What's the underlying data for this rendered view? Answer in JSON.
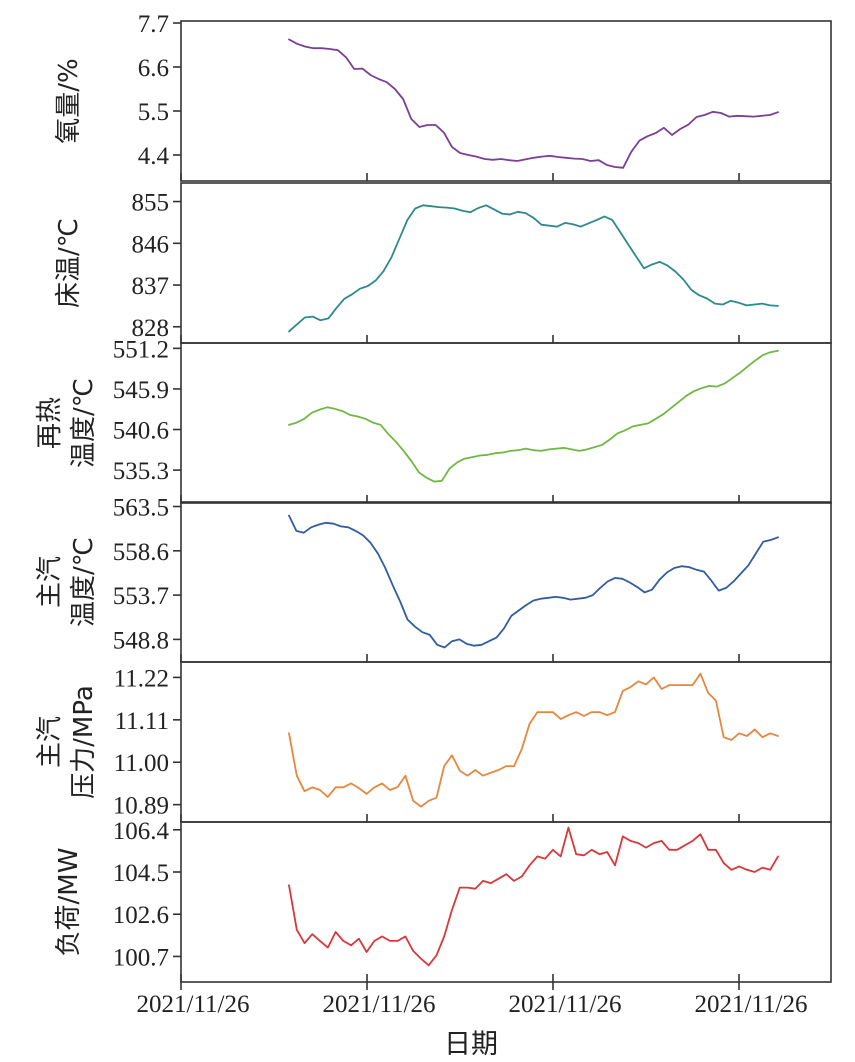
{
  "chart_data": {
    "type": "line",
    "xlabel": "日期",
    "x_tick_labels": [
      "2021/11/26",
      "2021/11/26",
      "2021/11/26",
      "2021/11/26"
    ],
    "grid": false,
    "panels": [
      {
        "ylabel": [
          "氧量/%"
        ],
        "color": "#7b3f98",
        "ylim": [
          3.75,
          7.75
        ],
        "yticks": [
          7.7,
          6.6,
          5.5,
          4.4
        ],
        "ytick_labels": [
          "7.7",
          "6.6",
          "5.5",
          "4.4"
        ],
        "values": [
          7.29,
          7.18,
          7.11,
          7.07,
          7.07,
          7.05,
          7.02,
          6.84,
          6.55,
          6.56,
          6.4,
          6.3,
          6.22,
          6.05,
          5.8,
          5.3,
          5.1,
          5.15,
          5.15,
          4.96,
          4.6,
          4.45,
          4.4,
          4.36,
          4.3,
          4.28,
          4.3,
          4.27,
          4.25,
          4.29,
          4.33,
          4.36,
          4.38,
          4.35,
          4.33,
          4.31,
          4.3,
          4.25,
          4.27,
          4.15,
          4.1,
          4.08,
          4.48,
          4.76,
          4.87,
          4.95,
          5.08,
          4.9,
          5.05,
          5.16,
          5.35,
          5.4,
          5.48,
          5.45,
          5.36,
          5.38,
          5.37,
          5.36,
          5.38,
          5.4,
          5.47
        ]
      },
      {
        "ylabel": [
          "床温/℃"
        ],
        "color": "#2c8a8c",
        "ylim": [
          824.5,
          859
        ],
        "yticks": [
          855,
          846,
          837,
          828
        ],
        "ytick_labels": [
          "855",
          "846",
          "837",
          "828"
        ],
        "values": [
          827.0,
          828.5,
          830.0,
          830.2,
          829.4,
          829.8,
          832.0,
          834.0,
          835.0,
          836.2,
          836.8,
          838.0,
          840.0,
          843.0,
          847.0,
          851.0,
          853.5,
          854.2,
          854.0,
          853.8,
          853.7,
          853.5,
          853.0,
          852.7,
          853.6,
          854.2,
          853.3,
          852.4,
          852.2,
          852.8,
          852.5,
          851.5,
          850.0,
          849.8,
          849.6,
          850.4,
          850.1,
          849.6,
          850.3,
          851.0,
          851.8,
          851.0,
          848.4,
          845.8,
          843.2,
          840.6,
          841.4,
          842.0,
          841.2,
          839.9,
          838.2,
          836.0,
          834.8,
          834.1,
          833.0,
          832.8,
          833.6,
          833.2,
          832.6,
          832.8,
          833.0,
          832.6,
          832.5
        ]
      },
      {
        "ylabel": [
          "再热",
          "温度/℃"
        ],
        "color": "#70b844",
        "ylim": [
          531.0,
          551.9
        ],
        "yticks": [
          551.2,
          545.9,
          540.6,
          535.3
        ],
        "ytick_labels": [
          "551.2",
          "545.9",
          "540.6",
          "535.3"
        ],
        "values": [
          541.2,
          541.5,
          542.0,
          542.8,
          543.2,
          543.5,
          543.3,
          543.0,
          542.5,
          542.3,
          542.0,
          541.5,
          541.2,
          540.0,
          539.0,
          537.8,
          536.5,
          535.0,
          534.3,
          533.8,
          533.9,
          535.5,
          536.3,
          536.8,
          537.0,
          537.2,
          537.3,
          537.5,
          537.6,
          537.8,
          537.9,
          538.1,
          537.9,
          537.8,
          538.0,
          538.1,
          538.2,
          538.0,
          537.8,
          538.0,
          538.3,
          538.6,
          539.3,
          540.1,
          540.5,
          541.0,
          541.2,
          541.4,
          542.0,
          542.6,
          543.4,
          544.2,
          545.0,
          545.6,
          546.0,
          546.3,
          546.2,
          546.6,
          547.3,
          548.0,
          548.8,
          549.6,
          550.3,
          550.7,
          550.9
        ]
      },
      {
        "ylabel": [
          "主汽",
          "温度/℃"
        ],
        "color": "#2f5d9e",
        "ylim": [
          546.3,
          564.0
        ],
        "yticks": [
          563.5,
          558.6,
          553.7,
          548.8
        ],
        "ytick_labels": [
          "563.5",
          "558.6",
          "553.7",
          "548.8"
        ],
        "values": [
          562.5,
          560.8,
          560.6,
          561.2,
          561.5,
          561.7,
          561.6,
          561.3,
          561.2,
          560.8,
          560.3,
          559.5,
          558.3,
          556.7,
          554.8,
          553.0,
          551.0,
          550.2,
          549.6,
          549.3,
          548.2,
          547.9,
          548.6,
          548.8,
          548.3,
          548.1,
          548.2,
          548.6,
          549.0,
          550.0,
          551.4,
          552.0,
          552.6,
          553.1,
          553.3,
          553.4,
          553.5,
          553.4,
          553.2,
          553.3,
          553.4,
          553.7,
          554.5,
          555.2,
          555.6,
          555.5,
          555.1,
          554.6,
          554.0,
          554.3,
          555.4,
          556.2,
          556.7,
          556.9,
          556.8,
          556.5,
          556.3,
          555.3,
          554.2,
          554.5,
          555.2,
          556.1,
          557.0,
          558.3,
          559.6,
          559.8,
          560.1
        ]
      },
      {
        "ylabel": [
          "主汽",
          "压力/MPa"
        ],
        "color": "#e6873f",
        "ylim": [
          10.845,
          11.26
        ],
        "yticks": [
          11.22,
          11.11,
          11.0,
          10.89
        ],
        "ytick_labels": [
          "11.22",
          "11.11",
          "11.00",
          "10.89"
        ],
        "values": [
          11.075,
          10.965,
          10.925,
          10.935,
          10.928,
          10.91,
          10.935,
          10.935,
          10.945,
          10.933,
          10.918,
          10.935,
          10.945,
          10.928,
          10.936,
          10.965,
          10.9,
          10.885,
          10.9,
          10.908,
          10.99,
          11.018,
          10.978,
          10.965,
          10.98,
          10.965,
          10.973,
          10.98,
          10.99,
          10.99,
          11.035,
          11.1,
          11.13,
          11.13,
          11.13,
          11.112,
          11.122,
          11.13,
          11.12,
          11.13,
          11.13,
          11.122,
          11.13,
          11.185,
          11.195,
          11.21,
          11.202,
          11.22,
          11.19,
          11.2,
          11.2,
          11.2,
          11.2,
          11.23,
          11.18,
          11.16,
          11.065,
          11.058,
          11.075,
          11.068,
          11.085,
          11.065,
          11.075,
          11.068
        ]
      },
      {
        "ylabel": [
          "负荷/MW"
        ],
        "color": "#d8383a",
        "ylim": [
          99.55,
          106.75
        ],
        "yticks": [
          106.4,
          104.5,
          102.6,
          100.7
        ],
        "ytick_labels": [
          "106.4",
          "104.5",
          "102.6",
          "100.7"
        ],
        "values": [
          103.9,
          101.9,
          101.3,
          101.7,
          101.4,
          101.1,
          101.8,
          101.4,
          101.2,
          101.5,
          100.9,
          101.4,
          101.6,
          101.4,
          101.4,
          101.6,
          100.95,
          100.6,
          100.3,
          100.75,
          101.6,
          102.8,
          103.8,
          103.8,
          103.75,
          104.1,
          104.0,
          104.2,
          104.4,
          104.1,
          104.3,
          104.8,
          105.2,
          105.1,
          105.5,
          105.2,
          106.5,
          105.3,
          105.25,
          105.5,
          105.3,
          105.4,
          104.8,
          106.1,
          105.9,
          105.8,
          105.6,
          105.8,
          105.9,
          105.5,
          105.5,
          105.7,
          105.9,
          106.2,
          105.5,
          105.5,
          104.9,
          104.6,
          104.75,
          104.6,
          104.5,
          104.7,
          104.6,
          105.2
        ]
      }
    ]
  }
}
